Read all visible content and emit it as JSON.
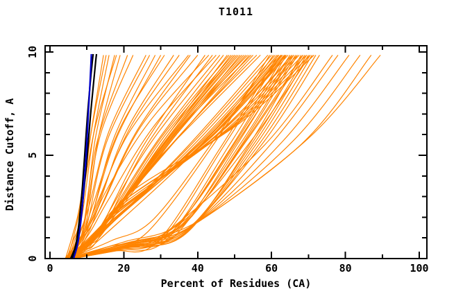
{
  "chart": {
    "title": "T1011",
    "xlabel": "Percent of Residues (CA)",
    "ylabel": "Distance Cutoff, A"
  },
  "chart_data": {
    "type": "line",
    "title": "T1011",
    "xlabel": "Percent of Residues (CA)",
    "ylabel": "Distance Cutoff, A",
    "xlim": [
      0,
      100
    ],
    "ylim": [
      0,
      10
    ],
    "x_ticks_major": [
      0,
      20,
      40,
      60,
      80,
      100
    ],
    "x_ticks_minor": [
      10,
      30,
      50,
      70,
      90
    ],
    "y_ticks_major": [
      0,
      5,
      10
    ],
    "y_ticks_minor": [
      1,
      2,
      3,
      4,
      6,
      7,
      8,
      9
    ],
    "grid": false,
    "legend": "none",
    "colors": {
      "ensemble": "#ff8400",
      "black_curve": "#000000",
      "blue_curve": "#0000cc",
      "frame": "#000000"
    },
    "series": [
      {
        "name": "black-model-1",
        "color": "#000000",
        "width": 2.2,
        "points": [
          [
            5.6,
            0
          ],
          [
            6.9,
            0.6
          ],
          [
            7.7,
            1.5
          ],
          [
            8.3,
            2.5
          ],
          [
            8.8,
            3.5
          ],
          [
            9.4,
            5.0
          ],
          [
            10.1,
            6.8
          ],
          [
            10.9,
            8.5
          ],
          [
            11.5,
            9.6
          ],
          [
            11.7,
            9.9
          ]
        ]
      },
      {
        "name": "black-model-2",
        "color": "#000000",
        "width": 2.2,
        "points": [
          [
            6.0,
            0
          ],
          [
            7.3,
            0.6
          ],
          [
            8.1,
            1.5
          ],
          [
            8.8,
            2.6
          ],
          [
            9.4,
            3.7
          ],
          [
            10.1,
            5.0
          ],
          [
            10.9,
            6.8
          ],
          [
            11.8,
            8.5
          ],
          [
            12.4,
            9.6
          ],
          [
            12.6,
            9.9
          ]
        ]
      },
      {
        "name": "blue-model",
        "color": "#0000cc",
        "width": 2.2,
        "points": [
          [
            6.4,
            0
          ],
          [
            7.5,
            0.7
          ],
          [
            8.3,
            1.7
          ],
          [
            8.9,
            2.8
          ],
          [
            9.3,
            3.8
          ],
          [
            9.8,
            5.0
          ],
          [
            10.3,
            6.7
          ],
          [
            10.8,
            8.4
          ],
          [
            11.1,
            9.5
          ],
          [
            11.2,
            9.9
          ]
        ]
      }
    ],
    "ensemble": {
      "name": "orange-model-ensemble",
      "color": "#ff8400",
      "width": 1.2,
      "y_top": 9.85,
      "anchor_format": [
        "x_at_y0",
        "x_knee",
        "y_knee",
        "x_mid",
        "x_top"
      ],
      "curves": [
        [
          4.5,
          8.2,
          2.0,
          11.0,
          14.5
        ],
        [
          5.0,
          8.8,
          2.2,
          11.8,
          16.0
        ],
        [
          5.5,
          9.5,
          1.8,
          12.3,
          17.5
        ],
        [
          4.2,
          8.0,
          2.5,
          11.2,
          15.2
        ],
        [
          6.0,
          10.1,
          2.0,
          13.2,
          19.0
        ],
        [
          5.2,
          9.0,
          1.5,
          12.8,
          21.0
        ],
        [
          4.8,
          8.6,
          2.8,
          12.2,
          18.0
        ],
        [
          5.6,
          9.9,
          2.3,
          13.8,
          22.5
        ],
        [
          5.0,
          10.5,
          2.5,
          16.0,
          26.0
        ],
        [
          4.4,
          11.2,
          2.0,
          17.5,
          28.5
        ],
        [
          6.2,
          12.0,
          2.8,
          19.0,
          31.0
        ],
        [
          5.4,
          10.0,
          1.6,
          15.5,
          27.0
        ],
        [
          4.9,
          12.8,
          2.4,
          20.5,
          33.5
        ],
        [
          5.8,
          13.5,
          3.0,
          22.0,
          35.0
        ],
        [
          6.5,
          11.8,
          2.1,
          21.0,
          37.5
        ],
        [
          4.1,
          10.8,
          1.8,
          18.0,
          30.0
        ],
        [
          5.3,
          14.2,
          2.6,
          24.0,
          40.0
        ],
        [
          6.8,
          15.0,
          3.2,
          26.5,
          43.0
        ],
        [
          4.6,
          13.0,
          2.2,
          23.0,
          38.0
        ],
        [
          5.9,
          16.0,
          2.9,
          28.0,
          45.0
        ],
        [
          5.1,
          12.5,
          1.2,
          27.0,
          46.0
        ],
        [
          6.3,
          15.5,
          1.8,
          30.0,
          48.5
        ],
        [
          4.7,
          18.0,
          2.4,
          32.5,
          50.0
        ],
        [
          5.5,
          20.5,
          2.9,
          35.0,
          52.0
        ],
        [
          6.1,
          14.0,
          1.5,
          29.0,
          47.0
        ],
        [
          4.3,
          16.5,
          2.0,
          31.0,
          49.5
        ],
        [
          5.7,
          22.0,
          3.4,
          36.5,
          53.5
        ],
        [
          6.6,
          19.0,
          2.6,
          34.0,
          51.0
        ],
        [
          4.9,
          13.2,
          1.0,
          26.0,
          44.0
        ],
        [
          5.2,
          24.5,
          3.8,
          38.0,
          54.5
        ],
        [
          6.0,
          17.2,
          2.2,
          33.0,
          50.5
        ],
        [
          4.5,
          21.0,
          3.1,
          36.0,
          52.5
        ],
        [
          5.8,
          15.0,
          1.4,
          30.5,
          48.0
        ],
        [
          6.4,
          23.5,
          3.6,
          39.0,
          55.0
        ],
        [
          5.0,
          19.5,
          2.7,
          35.5,
          53.0
        ],
        [
          4.2,
          12.0,
          0.9,
          25.0,
          42.0
        ],
        [
          5.6,
          25.5,
          4.0,
          40.0,
          56.0
        ],
        [
          6.7,
          18.5,
          2.3,
          34.5,
          51.5
        ],
        [
          4.8,
          14.8,
          1.6,
          31.5,
          49.0
        ],
        [
          5.3,
          26.5,
          4.3,
          41.5,
          57.0
        ],
        [
          6.2,
          20.0,
          2.8,
          37.0,
          54.0
        ],
        [
          4.4,
          16.0,
          1.9,
          32.0,
          50.0
        ],
        [
          5.0,
          13.0,
          1.1,
          38.0,
          60.0
        ],
        [
          5.9,
          15.8,
          1.7,
          42.0,
          63.5
        ],
        [
          4.6,
          14.2,
          1.3,
          40.0,
          62.0
        ],
        [
          6.3,
          17.0,
          2.1,
          45.0,
          66.0
        ],
        [
          5.4,
          12.2,
          0.9,
          37.0,
          59.0
        ],
        [
          4.8,
          16.2,
          1.9,
          43.5,
          64.5
        ],
        [
          6.0,
          14.8,
          1.5,
          41.0,
          62.5
        ],
        [
          5.2,
          18.2,
          2.3,
          46.0,
          67.0
        ],
        [
          4.3,
          13.6,
          1.2,
          39.0,
          61.0
        ],
        [
          6.6,
          19.5,
          2.6,
          48.0,
          68.5
        ],
        [
          5.7,
          15.2,
          1.6,
          42.5,
          63.0
        ],
        [
          4.9,
          17.6,
          2.2,
          45.5,
          65.5
        ],
        [
          6.1,
          13.9,
          1.0,
          40.5,
          61.5
        ],
        [
          5.5,
          20.0,
          2.8,
          49.0,
          69.5
        ],
        [
          4.5,
          16.8,
          2.0,
          44.0,
          64.0
        ],
        [
          6.4,
          18.8,
          2.4,
          47.0,
          67.5
        ],
        [
          5.1,
          14.5,
          1.4,
          41.5,
          62.8
        ],
        [
          5.8,
          21.5,
          3.0,
          50.0,
          70.5
        ],
        [
          4.7,
          15.5,
          1.8,
          43.0,
          63.8
        ],
        [
          6.2,
          22.5,
          3.3,
          51.5,
          71.5
        ],
        [
          5.3,
          33.0,
          1.3,
          50.0,
          65.0
        ],
        [
          6.0,
          35.5,
          1.5,
          52.5,
          67.0
        ],
        [
          4.8,
          36.8,
          1.2,
          54.0,
          68.0
        ],
        [
          5.6,
          34.2,
          1.6,
          51.0,
          66.0
        ],
        [
          6.5,
          37.2,
          1.4,
          55.5,
          70.0
        ],
        [
          4.4,
          32.0,
          1.1,
          48.5,
          63.5
        ],
        [
          5.9,
          36.2,
          1.7,
          53.5,
          69.0
        ],
        [
          5.1,
          30.5,
          1.0,
          47.0,
          62.5
        ],
        [
          6.3,
          37.0,
          1.3,
          56.0,
          71.0
        ],
        [
          4.6,
          34.8,
          1.5,
          52.0,
          66.5
        ],
        [
          5.7,
          36.5,
          1.2,
          54.5,
          69.5
        ],
        [
          6.1,
          31.5,
          0.9,
          49.0,
          64.0
        ],
        [
          4.9,
          35.8,
          1.6,
          53.0,
          68.5
        ],
        [
          5.4,
          37.4,
          1.4,
          57.0,
          72.0
        ],
        [
          6.6,
          33.8,
          1.1,
          50.5,
          65.5
        ],
        [
          4.2,
          36.0,
          1.8,
          55.0,
          70.5
        ],
        [
          5.8,
          29.0,
          0.8,
          46.0,
          61.8
        ],
        [
          6.2,
          37.6,
          1.5,
          58.0,
          73.0
        ],
        [
          5.0,
          28.0,
          1.9,
          45.0,
          60.5
        ],
        [
          5.5,
          26.5,
          1.3,
          44.5,
          59.5
        ],
        [
          5.2,
          36.5,
          1.3,
          60.0,
          78.0
        ],
        [
          6.0,
          37.8,
          1.5,
          63.0,
          81.0
        ],
        [
          4.7,
          30.0,
          1.1,
          58.0,
          76.5
        ],
        [
          5.6,
          38.5,
          1.6,
          66.0,
          84.0
        ],
        [
          6.4,
          35.0,
          1.2,
          68.0,
          87.0
        ],
        [
          5.0,
          40.0,
          1.8,
          70.0,
          89.5
        ]
      ]
    }
  }
}
